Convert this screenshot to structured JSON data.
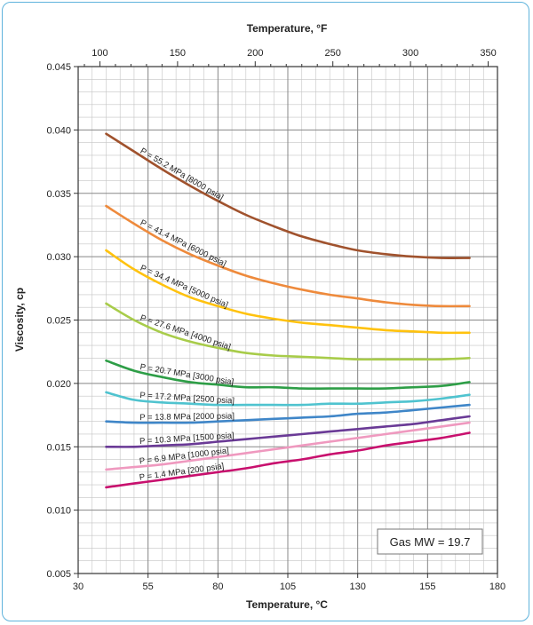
{
  "chart_data": {
    "type": "line",
    "title": "",
    "xlabel": "Temperature, °C",
    "x2label": "Temperature, °F",
    "ylabel": "Viscosity, cp",
    "xlim": [
      30,
      180
    ],
    "x2lim": [
      86,
      356
    ],
    "ylim": [
      0.005,
      0.045
    ],
    "xticks": [
      "30",
      "55",
      "80",
      "105",
      "130",
      "155",
      "180"
    ],
    "x2ticks": [
      "100",
      "150",
      "200",
      "250",
      "300",
      "350"
    ],
    "yticks": [
      "0.005",
      "0.010",
      "0.015",
      "0.020",
      "0.025",
      "0.030",
      "0.035",
      "0.040",
      "0.045"
    ],
    "grid": true,
    "annotation": "Gas MW = 19.7",
    "series": [
      {
        "name": "P = 55.2 MPa [8000 psia]",
        "color": "#a0522d",
        "x": [
          40,
          50,
          60,
          70,
          80,
          90,
          100,
          110,
          120,
          130,
          140,
          150,
          160,
          170
        ],
        "y": [
          0.0397,
          0.0383,
          0.0369,
          0.0356,
          0.0344,
          0.0333,
          0.0324,
          0.0316,
          0.031,
          0.0305,
          0.0302,
          0.03,
          0.0299,
          0.0299
        ]
      },
      {
        "name": "P = 41.4 MPa [6000 psia]",
        "color": "#ee8a3c",
        "x": [
          40,
          50,
          60,
          70,
          80,
          90,
          100,
          110,
          120,
          130,
          140,
          150,
          160,
          170
        ],
        "y": [
          0.034,
          0.0326,
          0.0313,
          0.0302,
          0.0293,
          0.0285,
          0.0279,
          0.0274,
          0.027,
          0.0267,
          0.0264,
          0.0262,
          0.0261,
          0.0261
        ]
      },
      {
        "name": "P = 34.4 MPa [5000 psia]",
        "color": "#ffc20e",
        "x": [
          40,
          50,
          60,
          70,
          80,
          90,
          100,
          110,
          120,
          130,
          140,
          150,
          160,
          170
        ],
        "y": [
          0.0305,
          0.029,
          0.0278,
          0.0268,
          0.0261,
          0.0255,
          0.0251,
          0.0248,
          0.0246,
          0.0244,
          0.0242,
          0.0241,
          0.024,
          0.024
        ]
      },
      {
        "name": "P = 27.6 MPa [4000 psia]",
        "color": "#a8cc4a",
        "x": [
          40,
          50,
          60,
          70,
          80,
          90,
          100,
          110,
          120,
          130,
          140,
          150,
          160,
          170
        ],
        "y": [
          0.0263,
          0.025,
          0.024,
          0.0233,
          0.0228,
          0.0224,
          0.0222,
          0.0221,
          0.022,
          0.0219,
          0.0219,
          0.0219,
          0.0219,
          0.022
        ]
      },
      {
        "name": "P = 20.7 MPa [3000 psia]",
        "color": "#2e9e47",
        "x": [
          40,
          50,
          60,
          70,
          80,
          90,
          100,
          110,
          120,
          130,
          140,
          150,
          160,
          170
        ],
        "y": [
          0.0218,
          0.021,
          0.0205,
          0.0201,
          0.0199,
          0.0197,
          0.0197,
          0.0196,
          0.0196,
          0.0196,
          0.0196,
          0.0197,
          0.0198,
          0.0201
        ]
      },
      {
        "name": "P = 17.2 MPa [2500 psia]",
        "color": "#4fc3cf",
        "x": [
          40,
          50,
          60,
          70,
          80,
          90,
          100,
          110,
          120,
          130,
          140,
          150,
          160,
          170
        ],
        "y": [
          0.0193,
          0.0187,
          0.0185,
          0.0184,
          0.0183,
          0.0183,
          0.0183,
          0.0183,
          0.0184,
          0.0184,
          0.0185,
          0.0186,
          0.0188,
          0.0191
        ]
      },
      {
        "name": "P = 13.8 MPa [2000 psia]",
        "color": "#3f86c8",
        "x": [
          40,
          50,
          60,
          70,
          80,
          90,
          100,
          110,
          120,
          130,
          140,
          150,
          160,
          170
        ],
        "y": [
          0.017,
          0.0169,
          0.0169,
          0.0169,
          0.017,
          0.0171,
          0.0172,
          0.0173,
          0.0174,
          0.0176,
          0.0177,
          0.0179,
          0.0181,
          0.0183
        ]
      },
      {
        "name": "P = 10.3 MPa [1500 psia]",
        "color": "#6a3a96",
        "x": [
          40,
          50,
          60,
          70,
          80,
          90,
          100,
          110,
          120,
          130,
          140,
          150,
          160,
          170
        ],
        "y": [
          0.015,
          0.015,
          0.0151,
          0.0152,
          0.0154,
          0.0156,
          0.0158,
          0.016,
          0.0162,
          0.0164,
          0.0166,
          0.0168,
          0.0171,
          0.0174
        ]
      },
      {
        "name": "P = 6.9 MPa [1000 psia]",
        "color": "#ef99bf",
        "x": [
          40,
          50,
          60,
          70,
          80,
          90,
          100,
          110,
          120,
          130,
          140,
          150,
          160,
          170
        ],
        "y": [
          0.0132,
          0.0134,
          0.0136,
          0.0139,
          0.0142,
          0.0145,
          0.0148,
          0.0151,
          0.0154,
          0.0157,
          0.016,
          0.0163,
          0.0166,
          0.0169
        ]
      },
      {
        "name": "P = 1.4 MPa [200 psia]",
        "color": "#c8106e",
        "x": [
          40,
          50,
          60,
          70,
          80,
          90,
          100,
          110,
          120,
          130,
          140,
          150,
          160,
          170
        ],
        "y": [
          0.0118,
          0.0121,
          0.0124,
          0.0127,
          0.013,
          0.0133,
          0.0137,
          0.014,
          0.0144,
          0.0147,
          0.0151,
          0.0154,
          0.0157,
          0.0161
        ]
      }
    ]
  }
}
